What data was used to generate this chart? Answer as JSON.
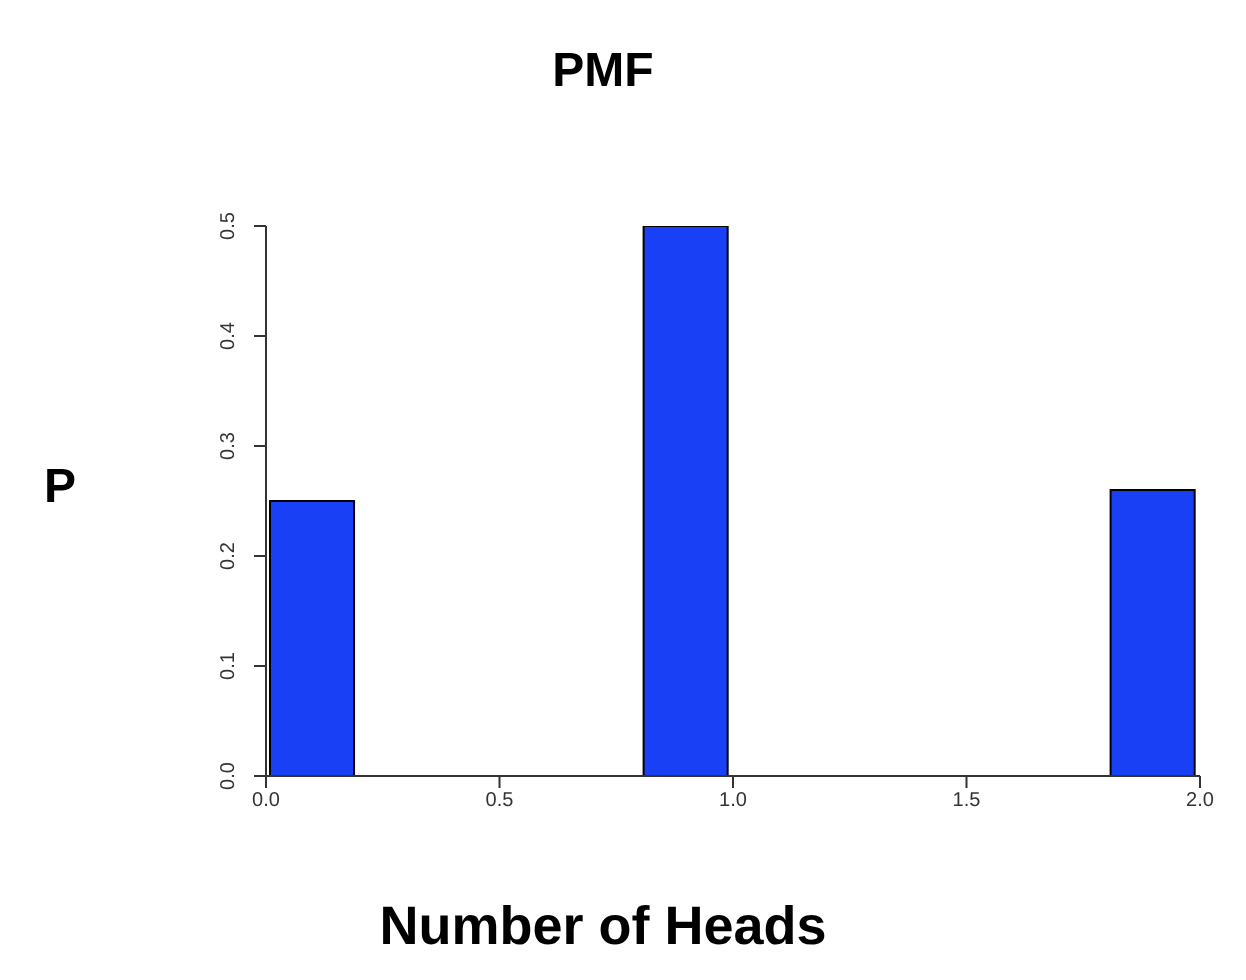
{
  "chart_data": {
    "type": "histogram",
    "title": "PMF",
    "xlabel": "Number of Heads",
    "ylabel": "P",
    "bins": [
      0,
      0.2,
      0.4,
      0.6,
      0.8,
      1.0,
      1.2,
      1.4,
      1.6,
      1.8,
      2.0
    ],
    "values": [
      0.25,
      0,
      0,
      0,
      0.5,
      0,
      0,
      0,
      0,
      0.26
    ],
    "color": "#1a40f5",
    "xlim": [
      0,
      2
    ],
    "xticks": [
      {
        "value": 0,
        "label": "0.0"
      },
      {
        "value": 0.5,
        "label": "0.5"
      },
      {
        "value": 1,
        "label": "1.0"
      },
      {
        "value": 1.5,
        "label": "1.5"
      },
      {
        "value": 2,
        "label": "2.0"
      }
    ],
    "ylim": [
      0,
      0.5
    ],
    "yticks": [
      {
        "value": 0,
        "label": "0.0"
      },
      0.1,
      0.2,
      0.3,
      0.4,
      0.5
    ],
    "grid": false
  }
}
